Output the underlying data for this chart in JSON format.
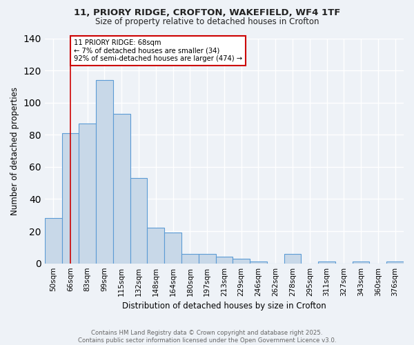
{
  "title_line1": "11, PRIORY RIDGE, CROFTON, WAKEFIELD, WF4 1TF",
  "title_line2": "Size of property relative to detached houses in Crofton",
  "xlabel": "Distribution of detached houses by size in Crofton",
  "ylabel": "Number of detached properties",
  "bar_values": [
    28,
    81,
    87,
    114,
    93,
    53,
    22,
    19,
    6,
    6,
    4,
    3,
    1,
    0,
    6,
    0,
    1,
    0,
    1,
    0,
    1
  ],
  "bin_labels": [
    "50sqm",
    "66sqm",
    "83sqm",
    "99sqm",
    "115sqm",
    "132sqm",
    "148sqm",
    "164sqm",
    "180sqm",
    "197sqm",
    "213sqm",
    "229sqm",
    "246sqm",
    "262sqm",
    "278sqm",
    "295sqm",
    "311sqm",
    "327sqm",
    "343sqm",
    "360sqm",
    "376sqm"
  ],
  "bar_color": "#c8d8e8",
  "bar_edge_color": "#5b9bd5",
  "vline_index": 1,
  "vline_color": "#cc0000",
  "annotation_text": "11 PRIORY RIDGE: 68sqm\n← 7% of detached houses are smaller (34)\n92% of semi-detached houses are larger (474) →",
  "annotation_box_color": "#ffffff",
  "annotation_box_edge": "#cc0000",
  "ylim": [
    0,
    140
  ],
  "yticks": [
    0,
    20,
    40,
    60,
    80,
    100,
    120,
    140
  ],
  "background_color": "#eef2f7",
  "grid_color": "#ffffff",
  "footnote": "Contains HM Land Registry data © Crown copyright and database right 2025.\nContains public sector information licensed under the Open Government Licence v3.0."
}
